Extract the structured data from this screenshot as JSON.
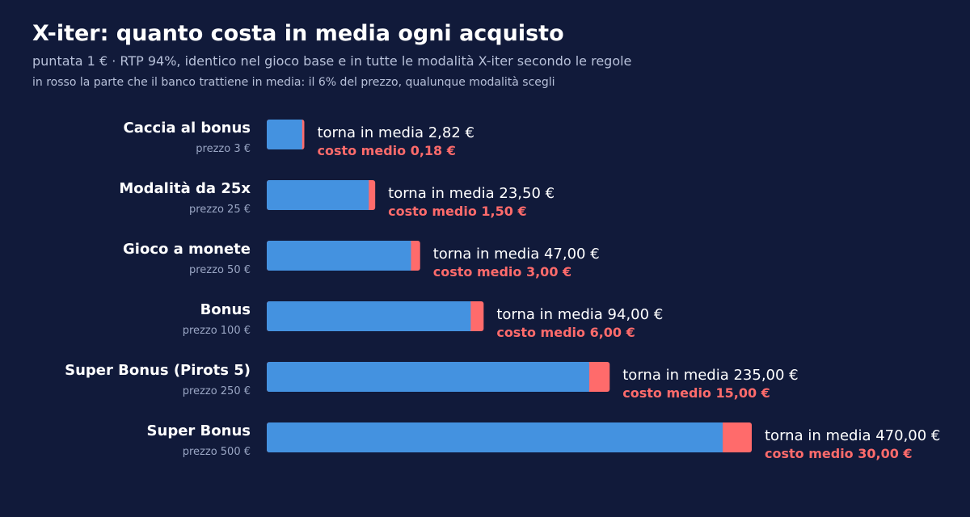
{
  "title": "X-iter: quanto costa in media ogni acquisto",
  "subtitle": "puntata 1 € · RTP 94%, identico nel gioco base e in tutte le modalità X-iter secondo le regole",
  "note": "in rosso la parte che il banco trattiene in media: il 6% del prezzo, qualunque modalità scegli",
  "colors": {
    "background": "#111a3a",
    "return_bar": "#4492e0",
    "house_edge": "#ff6b6b"
  },
  "chart_data": {
    "type": "bar",
    "orientation": "horizontal",
    "stacked": true,
    "x_scale": "sqrt",
    "categories": [
      {
        "name": "Caccia al bonus",
        "price_label": "prezzo 3 €",
        "price": 3,
        "return_label": "torna in media 2,82 €",
        "cost_label": "costo medio 0,18 €"
      },
      {
        "name": "Modalità da 25x",
        "price_label": "prezzo 25 €",
        "price": 25,
        "return_label": "torna in media 23,50 €",
        "cost_label": "costo medio 1,50 €"
      },
      {
        "name": "Gioco a monete",
        "price_label": "prezzo 50 €",
        "price": 50,
        "return_label": "torna in media 47,00 €",
        "cost_label": "costo medio 3,00 €"
      },
      {
        "name": "Bonus",
        "price_label": "prezzo 100 €",
        "price": 100,
        "return_label": "torna in media 94,00 €",
        "cost_label": "costo medio 6,00 €"
      },
      {
        "name": "Super Bonus (Pirots 5)",
        "price_label": "prezzo 250 €",
        "price": 250,
        "return_label": "torna in media 235,00 €",
        "cost_label": "costo medio 15,00 €"
      },
      {
        "name": "Super Bonus",
        "price_label": "prezzo 500 €",
        "price": 500,
        "return_label": "torna in media 470,00 €",
        "cost_label": "costo medio 30,00 €"
      }
    ],
    "series": [
      {
        "values": [
          2.82,
          23.5,
          47,
          94,
          235,
          470
        ]
      },
      {
        "values": [
          0.18,
          1.5,
          3,
          6,
          15,
          30
        ]
      }
    ]
  }
}
